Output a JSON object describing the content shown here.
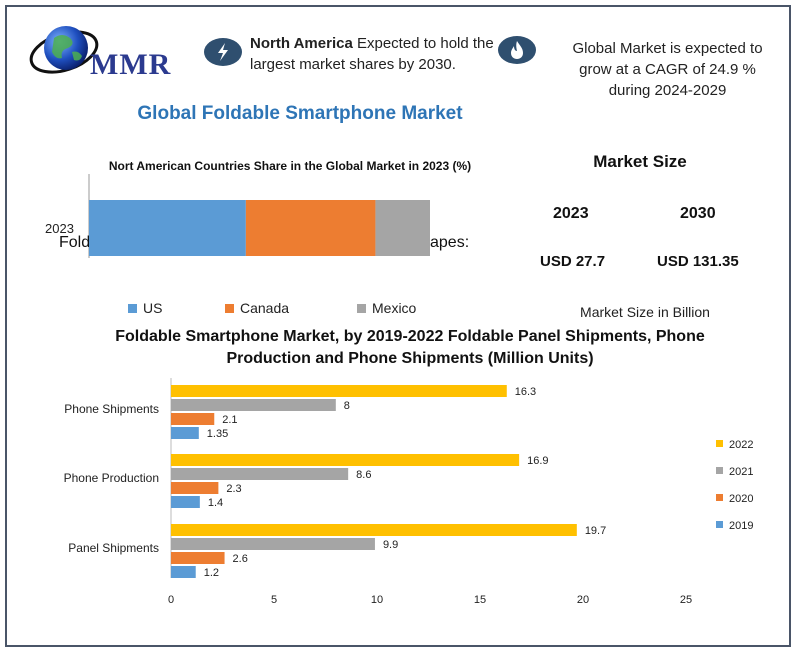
{
  "brand": {
    "logo_text": "MMR"
  },
  "icons": {
    "info1": "lightning-icon",
    "info2": "flame-icon"
  },
  "info1": {
    "bold": "North America",
    "text": " Expected to hold the largest market shares by 2030."
  },
  "info2": {
    "text": "Global Market is expected to grow at a CAGR of 24.9 % during 2024-2029"
  },
  "main_title": "Global Foldable Smartphone Market",
  "market_size": {
    "title": "Market Size",
    "years": [
      "2023",
      "2030"
    ],
    "values": [
      "USD 27.7",
      "USD 131.35"
    ],
    "note": "Market Size in Billion"
  },
  "chart_data": [
    {
      "type": "bar",
      "orientation": "horizontal-stacked",
      "title": "Nort American Countries Share in the Global Market in 2023 (%)",
      "categories": [
        "2023"
      ],
      "series": [
        {
          "name": "US",
          "values": [
            46
          ],
          "color": "#5b9bd5"
        },
        {
          "name": "Canada",
          "values": [
            38
          ],
          "color": "#ed7d31"
        },
        {
          "name": "Mexico",
          "values": [
            16
          ],
          "color": "#a5a5a5"
        }
      ],
      "legend": "bottom",
      "overlay_text_left": "Fold",
      "overlay_text_right": "apes:"
    },
    {
      "type": "bar",
      "orientation": "horizontal",
      "title": "Foldable Smartphone Market, by 2019-2022 Foldable Panel Shipments, Phone Production and Phone Shipments (Million Units)",
      "categories": [
        "Phone Shipments",
        "Phone Production",
        "Panel Shipments"
      ],
      "series": [
        {
          "name": "2022",
          "values": [
            16.3,
            16.9,
            19.7
          ],
          "color": "#ffc000"
        },
        {
          "name": "2021",
          "values": [
            8,
            8.6,
            9.9
          ],
          "color": "#a5a5a5"
        },
        {
          "name": "2020",
          "values": [
            2.1,
            2.3,
            2.6
          ],
          "color": "#ed7d31"
        },
        {
          "name": "2019",
          "values": [
            1.35,
            1.4,
            1.2
          ],
          "color": "#5b9bd5"
        }
      ],
      "xlim": [
        0,
        25
      ],
      "xticks": [
        "0",
        "5",
        "10",
        "15",
        "20",
        "25"
      ],
      "legend": "right"
    }
  ]
}
